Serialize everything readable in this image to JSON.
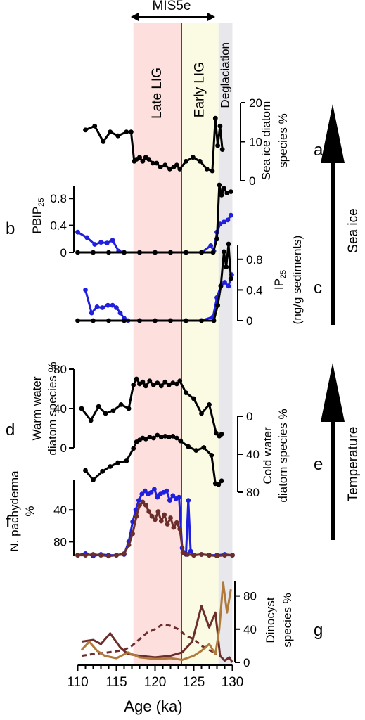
{
  "figure": {
    "top_label": "MIS5e",
    "bands": [
      {
        "label": "Late LIG",
        "from": 117.2,
        "to": 123.4,
        "color": "#fde0de"
      },
      {
        "label": "Early LIG",
        "from": 123.4,
        "to": 128.2,
        "color": "#fbfbe3"
      },
      {
        "label": "Deglaciation",
        "from": 128.2,
        "to": 130.0,
        "color": "#e8e8ec"
      }
    ],
    "divider_at": 123.4,
    "x_axis": {
      "label": "Age (ka)",
      "min": 110,
      "max": 130,
      "ticks": [
        110,
        115,
        120,
        125,
        130
      ]
    },
    "side_arrows": [
      {
        "label": "Sea ice"
      },
      {
        "label": "Temperature"
      }
    ]
  },
  "chart_data": [
    {
      "type": "line",
      "panel": "a",
      "ylabel": "Sea ice diatom species %",
      "ylabel_lines": [
        "Sea ice diatom",
        "species %"
      ],
      "ylim": [
        0,
        20
      ],
      "yticks": [
        0,
        10,
        20
      ],
      "axis_side": "right",
      "series": [
        {
          "color": "#000000",
          "markers": true,
          "x": [
            111,
            112.2,
            113.3,
            114.2,
            115.2,
            116.3,
            116.9,
            117.3,
            117.6,
            118.0,
            118.4,
            118.8,
            119.2,
            119.7,
            120.2,
            120.7,
            121.3,
            121.9,
            122.4,
            122.8,
            123.2,
            124.0,
            124.9,
            125.8,
            126.7,
            127.4,
            127.8,
            128.1,
            128.4,
            128.7
          ],
          "y": [
            13,
            14,
            10,
            12.5,
            11.5,
            12.5,
            12.5,
            5,
            5.5,
            6,
            5,
            6,
            5.5,
            4.5,
            4.5,
            3.5,
            4,
            3,
            3.5,
            4,
            3,
            5,
            6,
            5,
            3,
            2.5,
            16,
            9,
            14,
            8
          ]
        }
      ]
    },
    {
      "type": "line",
      "panel": "b",
      "ylabel": "PBIP25",
      "ylabel_base": "PBIP",
      "ylabel_sub": "25",
      "ylim": [
        0,
        1.0
      ],
      "yticks": [
        0,
        0.4,
        0.8
      ],
      "axis_side": "left",
      "series": [
        {
          "color": "#1f1fdd",
          "markers": true,
          "x": [
            110,
            111.2,
            112.2,
            113.0,
            113.8,
            114.5,
            115.3,
            116,
            118,
            120,
            122,
            124,
            126,
            127.2,
            127.6,
            128.0,
            128.4,
            128.9,
            129.4,
            129.8
          ],
          "y": [
            0.3,
            0.22,
            0.12,
            0.15,
            0.14,
            0.18,
            0.02,
            0,
            0,
            0,
            0,
            0,
            0,
            0.1,
            0.02,
            0.3,
            0.42,
            0.45,
            0.48,
            0.55
          ]
        },
        {
          "color": "#000000",
          "markers": true,
          "x": [
            110,
            112,
            114,
            116,
            118,
            120,
            122,
            124,
            126,
            127.5,
            128.0,
            128.3,
            128.6,
            128.9,
            129.3,
            129.8
          ],
          "y": [
            0,
            0,
            0,
            0,
            0,
            0,
            0,
            0,
            0,
            0,
            0.2,
            1.0,
            0.85,
            0.95,
            0.88,
            0.9
          ]
        }
      ]
    },
    {
      "type": "line",
      "panel": "c",
      "ylabel": "IP25 (ng/g sediments)",
      "ylabel_base": "IP",
      "ylabel_sub": "25",
      "ylabel_line2": "(ng/g sediments)",
      "ylim": [
        0,
        1.0
      ],
      "yticks": [
        0,
        0.4,
        0.8
      ],
      "axis_side": "right",
      "series": [
        {
          "color": "#1f1fdd",
          "markers": true,
          "x": [
            111,
            111.8,
            112.5,
            113.2,
            113.9,
            114.5,
            115,
            115.5,
            116,
            116.5,
            118,
            120,
            122,
            124,
            126,
            127.5,
            128.0,
            128.5,
            129.0,
            129.5,
            129.9
          ],
          "y": [
            0.4,
            0.1,
            0.18,
            0.17,
            0.2,
            0.2,
            0.17,
            0.1,
            0.03,
            0,
            0,
            0,
            0,
            0,
            0,
            0.05,
            0.3,
            0.45,
            0.5,
            0.45,
            0.6
          ]
        },
        {
          "color": "#000000",
          "markers": true,
          "x": [
            110,
            112,
            114,
            116,
            118,
            120,
            122,
            124,
            126,
            127.6,
            128.1,
            128.5,
            128.9,
            129.2,
            129.5,
            129.8
          ],
          "y": [
            0,
            0,
            0,
            0,
            0,
            0,
            0,
            0,
            0,
            0,
            0.2,
            0.45,
            0.9,
            0.7,
            1.0,
            0.55
          ]
        }
      ]
    },
    {
      "type": "line",
      "panel": "d",
      "ylabel": "Warm water diatom species %",
      "ylabel_lines": [
        "Warm water",
        "diatom species %"
      ],
      "ylim": [
        0,
        80
      ],
      "yticks": [
        0,
        40,
        80
      ],
      "axis_side": "left",
      "series": [
        {
          "color": "#000000",
          "markers": true,
          "x": [
            110.5,
            111.7,
            112.7,
            113.6,
            114.6,
            115.6,
            116.6,
            117.2,
            117.6,
            118.0,
            118.4,
            118.8,
            119.3,
            119.8,
            120.3,
            120.8,
            121.3,
            121.8,
            122.3,
            122.8,
            123.2,
            124.0,
            125.0,
            126.0,
            127.0,
            127.9,
            128.3,
            128.6
          ],
          "y": [
            40,
            28,
            42,
            35,
            38,
            44,
            40,
            64,
            70,
            65,
            67,
            63,
            68,
            64,
            66,
            63,
            67,
            64,
            66,
            65,
            68,
            56,
            50,
            35,
            44,
            15,
            12,
            14
          ]
        }
      ]
    },
    {
      "type": "line",
      "panel": "e",
      "ylabel": "Cold water diatom species %",
      "ylabel_lines": [
        "Cold water",
        "diatom species %"
      ],
      "ylim": [
        80,
        0
      ],
      "yticks": [
        0,
        40,
        80
      ],
      "axis_side": "right",
      "inverted": true,
      "series": [
        {
          "color": "#000000",
          "markers": true,
          "x": [
            111,
            112,
            113.2,
            114.2,
            115.2,
            116.3,
            117.2,
            117.6,
            118.0,
            118.4,
            118.8,
            119.3,
            119.8,
            120.3,
            120.8,
            121.3,
            121.8,
            122.3,
            122.8,
            123.3,
            124.3,
            125.3,
            126.3,
            127.3,
            127.8,
            128.2,
            128.6
          ],
          "y": [
            57,
            67,
            58,
            53,
            49,
            47,
            34,
            27,
            25,
            23,
            24,
            22,
            23,
            20,
            22,
            21,
            22,
            21,
            23,
            26,
            32,
            36,
            33,
            41,
            71,
            72,
            68
          ]
        }
      ]
    },
    {
      "type": "line",
      "panel": "f",
      "ylabel": "N. pachyderma %",
      "ylabel_lines": [
        "N. pachyderma",
        "%"
      ],
      "ylim": [
        100,
        0
      ],
      "yticks": [
        40,
        80
      ],
      "axis_side": "left",
      "inverted": true,
      "series": [
        {
          "color": "#1f1fdd",
          "markers": true,
          "x": [
            110,
            111,
            112,
            113,
            114,
            115,
            116,
            116.6,
            117.1,
            117.5,
            117.9,
            118.3,
            118.7,
            119.1,
            119.5,
            119.9,
            120.3,
            120.7,
            121.1,
            121.5,
            121.9,
            122.3,
            122.7,
            123.1,
            123.5,
            124.0,
            124.3,
            124.6,
            125,
            126,
            127,
            128,
            129,
            130
          ],
          "y": [
            97,
            95,
            98,
            96,
            97,
            97,
            96,
            80,
            55,
            40,
            28,
            20,
            16,
            20,
            18,
            14,
            24,
            20,
            18,
            16,
            28,
            22,
            26,
            24,
            88,
            96,
            28,
            92,
            97,
            96,
            97,
            97,
            96,
            97
          ]
        },
        {
          "color": "#6b2e2a",
          "markers": true,
          "x": [
            110,
            111,
            112,
            113,
            114,
            115,
            116,
            116.6,
            117.1,
            117.6,
            118.0,
            118.4,
            118.8,
            119.2,
            119.6,
            120.0,
            120.4,
            120.8,
            121.2,
            121.6,
            122.0,
            122.4,
            122.8,
            123.2,
            123.6,
            124.2,
            125,
            126,
            127,
            128,
            129,
            130
          ],
          "y": [
            97,
            97,
            96,
            97,
            98,
            97,
            95,
            84,
            70,
            48,
            34,
            30,
            34,
            42,
            48,
            52,
            42,
            54,
            46,
            58,
            50,
            62,
            56,
            64,
            94,
            96,
            97,
            96,
            97,
            98,
            97,
            97
          ]
        }
      ]
    },
    {
      "type": "line",
      "panel": "g",
      "ylabel": "Dinocyst species %",
      "ylabel_lines": [
        "Dinocyst",
        "species %"
      ],
      "ylim": [
        0,
        100
      ],
      "yticks": [
        0,
        40,
        80
      ],
      "axis_side": "right",
      "series": [
        {
          "color": "#6b2e2a",
          "style": "solid",
          "x": [
            110.5,
            112,
            113,
            114.2,
            115.5,
            116.5,
            118,
            120,
            122,
            123.5,
            124.8,
            126,
            127,
            127.8,
            128.4,
            129,
            129.6,
            130
          ],
          "y": [
            25,
            27,
            22,
            35,
            18,
            10,
            8,
            6,
            8,
            12,
            25,
            68,
            42,
            60,
            8,
            2,
            6,
            0
          ]
        },
        {
          "color": "#6b2e2a",
          "style": "dashed",
          "x": [
            110.5,
            112,
            114,
            116,
            117,
            118,
            119,
            120,
            121,
            122,
            123,
            124,
            125,
            126,
            127,
            128
          ],
          "y": [
            8,
            10,
            12,
            15,
            20,
            28,
            36,
            40,
            46,
            44,
            40,
            32,
            28,
            20,
            15,
            10
          ]
        },
        {
          "color": "#b07a3a",
          "style": "solid",
          "x": [
            110.5,
            111.5,
            112.5,
            113.5,
            115,
            116.5,
            118,
            120,
            122,
            123.5,
            125,
            126,
            127,
            127.8,
            128.3,
            128.8,
            129.3,
            129.8
          ],
          "y": [
            15,
            25,
            14,
            8,
            5,
            12,
            6,
            4,
            5,
            3,
            8,
            14,
            22,
            10,
            40,
            96,
            60,
            88
          ]
        }
      ]
    }
  ]
}
